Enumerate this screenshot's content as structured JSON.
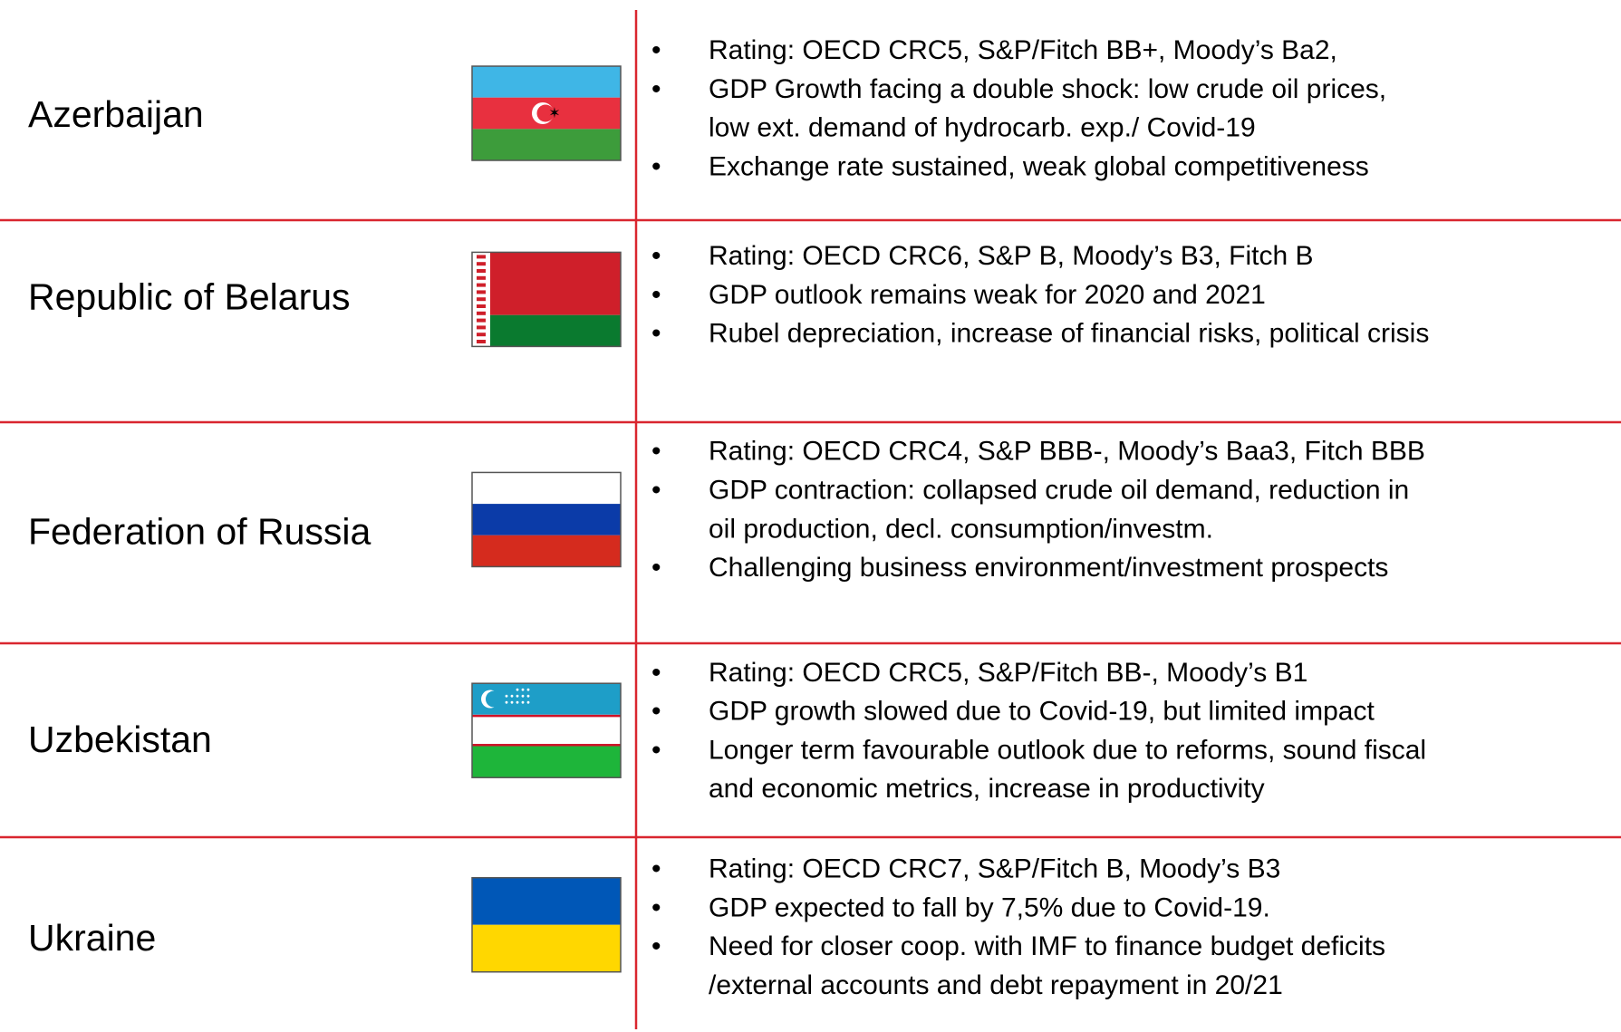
{
  "rows": [
    {
      "country": "Azerbaijan",
      "bullets": [
        [
          "Rating: OECD CRC5, S&P/Fitch BB+, Moody’s Ba2,"
        ],
        [
          "GDP Growth facing a double shock: low crude oil prices,",
          "low ext. demand of hydrocarb. exp./ Covid-19"
        ],
        [
          "Exchange rate sustained, weak global competitiveness"
        ]
      ]
    },
    {
      "country": "Republic of Belarus",
      "bullets": [
        [
          "Rating: OECD CRC6, S&P B, Moody’s B3, Fitch B"
        ],
        [
          "GDP outlook remains weak for 2020 and 2021"
        ],
        [
          "Rubel depreciation, increase of financial risks, political crisis"
        ]
      ]
    },
    {
      "country": "Federation of Russia",
      "bullets": [
        [
          "Rating: OECD CRC4, S&P BBB-, Moody’s Baa3, Fitch BBB"
        ],
        [
          "GDP contraction: collapsed crude oil demand, reduction in",
          "oil production, decl. consumption/investm."
        ],
        [
          "Challenging business environment/investment prospects"
        ]
      ]
    },
    {
      "country": "Uzbekistan",
      "bullets": [
        [
          "Rating: OECD CRC5, S&P/Fitch BB-, Moody’s B1"
        ],
        [
          "GDP growth slowed due to Covid-19, but limited impact"
        ],
        [
          "Longer term favourable outlook due to reforms, sound fiscal",
          "and economic metrics, increase in productivity"
        ]
      ]
    },
    {
      "country": "Ukraine",
      "bullets": [
        [
          "Rating: OECD CRC7, S&P/Fitch B, Moody’s B3"
        ],
        [
          "GDP expected to fall by 7,5% due to Covid-19."
        ],
        [
          "Need for closer coop. with IMF to finance budget deficits",
          "/external accounts and debt repayment in 20/21"
        ]
      ]
    }
  ]
}
